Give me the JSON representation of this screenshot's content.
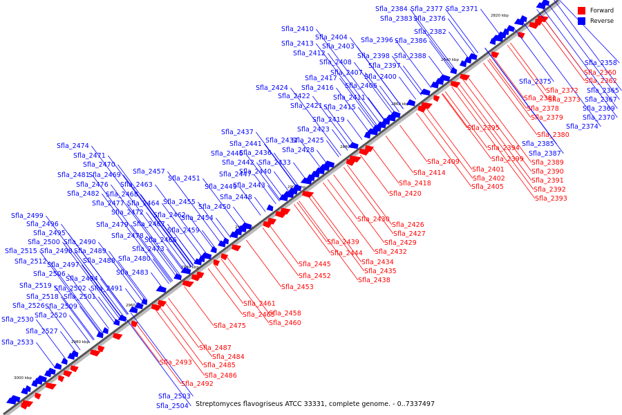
{
  "caption": "Streptomyces flavogriseus ATCC 33331, complete genome. - 0..7337497",
  "legend": [
    {
      "label": "Forward",
      "color": "#ff0000"
    },
    {
      "label": "Reverse",
      "color": "#0000ff"
    }
  ],
  "colors": {
    "forward": "#ff0000",
    "reverse": "#0000ff",
    "backbone": "#555555",
    "backbone_shadow": "#bbbbbb"
  },
  "ticks": [
    "2820 kbp",
    "2840 kbp",
    "2860 kbp",
    "2880 kbp",
    "2900 kbp",
    "2920 kbp",
    "2940 kbp",
    "2960 kbp",
    "2980 kbp",
    "3000 kbp"
  ],
  "reverse_genes": [
    "Sfla_2384",
    "Sfla_2377",
    "Sfla_2371",
    "Sfla_2383",
    "Sfla_2376",
    "Sfla_2410",
    "Sfla_2382",
    "Sfla_2404",
    "Sfla_2396",
    "Sfla_2386",
    "Sfla_2413",
    "Sfla_2403",
    "Sfla_2412",
    "Sfla_2398",
    "Sfla_2388",
    "Sfla_2408",
    "Sfla_2397",
    "Sfla_2407",
    "Sfla_2400",
    "Sfla_2417",
    "Sfla_2424",
    "Sfla_2416",
    "Sfla_2406",
    "Sfla_2422",
    "Sfla_2411",
    "Sfla_2421",
    "Sfla_2415",
    "Sfla_2419",
    "Sfla_2437",
    "Sfla_2423",
    "Sfla_2431",
    "Sfla_2425",
    "Sfla_2441",
    "Sfla_2474",
    "Sfla_2446",
    "Sfla_2436",
    "Sfla_2428",
    "Sfla_2471",
    "Sfla_2442",
    "Sfla_2433",
    "Sfla_2470",
    "Sfla_2457",
    "Sfla_2447",
    "Sfla_2440",
    "Sfla_2481",
    "Sfla_2469",
    "Sfla_2451",
    "Sfla_2476",
    "Sfla_2463",
    "Sfla_2449",
    "Sfla_2443",
    "Sfla_2482",
    "Sfla_2468",
    "Sfla_2448",
    "Sfla_2477",
    "Sfla_2464",
    "Sfla_2455",
    "Sfla_2450",
    "Sfla_2499",
    "Sfla_2472",
    "Sfla_2462",
    "Sfla_2454",
    "Sfla_2496",
    "Sfla_2479",
    "Sfla_2467",
    "Sfla_2459",
    "Sfla_2495",
    "Sfla_2478",
    "Sfla_2466",
    "Sfla_2500",
    "Sfla_2490",
    "Sfla_2473",
    "Sfla_2515",
    "Sfla_2498",
    "Sfla_2489",
    "Sfla_2512",
    "Sfla_2488",
    "Sfla_2480",
    "Sfla_2497",
    "Sfla_2506",
    "Sfla_2483",
    "Sfla_2494",
    "Sfla_2519",
    "Sfla_2502",
    "Sfla_2491",
    "Sfla_2518",
    "Sfla_2501",
    "Sfla_2526",
    "Sfla_2509",
    "Sfla_2520",
    "Sfla_2530",
    "Sfla_2527",
    "Sfla_2533",
    "Sfla_2503",
    "Sfla_2504",
    "Sfla_2358",
    "Sfla_2375",
    "Sfla_2365",
    "Sfla_2367",
    "Sfla_2369",
    "Sfla_2370",
    "Sfla_2374",
    "Sfla_2385",
    "Sfla_2387"
  ],
  "forward_genes": [
    "Sfla_2360",
    "Sfla_2362",
    "Sfla_2372",
    "Sfla_2381",
    "Sfla_2373",
    "Sfla_2378",
    "Sfla_2379",
    "Sfla_2380",
    "Sfla_2395",
    "Sfla_2394",
    "Sfla_2399",
    "Sfla_2389",
    "Sfla_2409",
    "Sfla_2401",
    "Sfla_2390",
    "Sfla_2414",
    "Sfla_2402",
    "Sfla_2391",
    "Sfla_2405",
    "Sfla_2392",
    "Sfla_2393",
    "Sfla_2418",
    "Sfla_2420",
    "Sfla_2430",
    "Sfla_2426",
    "Sfla_2427",
    "Sfla_2439",
    "Sfla_2429",
    "Sfla_2444",
    "Sfla_2432",
    "Sfla_2434",
    "Sfla_2445",
    "Sfla_2435",
    "Sfla_2452",
    "Sfla_2438",
    "Sfla_2453",
    "Sfla_2461",
    "Sfla_2458",
    "Sfla_2465",
    "Sfla_2460",
    "Sfla_2475",
    "Sfla_2487",
    "Sfla_2484",
    "Sfla_2493",
    "Sfla_2485",
    "Sfla_2486",
    "Sfla_2492"
  ]
}
